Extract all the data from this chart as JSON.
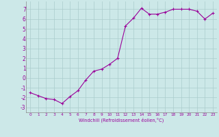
{
  "x": [
    0,
    1,
    2,
    3,
    4,
    5,
    6,
    7,
    8,
    9,
    10,
    11,
    12,
    13,
    14,
    15,
    16,
    17,
    18,
    19,
    20,
    21,
    22,
    23
  ],
  "y": [
    -1.5,
    -1.8,
    -2.1,
    -2.2,
    -2.6,
    -1.9,
    -1.3,
    -0.2,
    0.7,
    0.9,
    1.4,
    2.0,
    5.3,
    6.1,
    7.1,
    6.5,
    6.5,
    6.7,
    7.0,
    7.0,
    7.0,
    6.8,
    6.0,
    6.6
  ],
  "line_color": "#990099",
  "marker": "+",
  "marker_size": 3,
  "marker_color": "#990099",
  "bg_color": "#cce8e8",
  "grid_color": "#aacccc",
  "xlabel": "Windchill (Refroidissement éolien,°C)",
  "xlabel_color": "#990099",
  "tick_color": "#990099",
  "ylim": [
    -3.5,
    7.8
  ],
  "xlim": [
    -0.5,
    23.5
  ],
  "yticks": [
    -3,
    -2,
    -1,
    0,
    1,
    2,
    3,
    4,
    5,
    6,
    7
  ],
  "xticks": [
    0,
    1,
    2,
    3,
    4,
    5,
    6,
    7,
    8,
    9,
    10,
    11,
    12,
    13,
    14,
    15,
    16,
    17,
    18,
    19,
    20,
    21,
    22,
    23
  ]
}
